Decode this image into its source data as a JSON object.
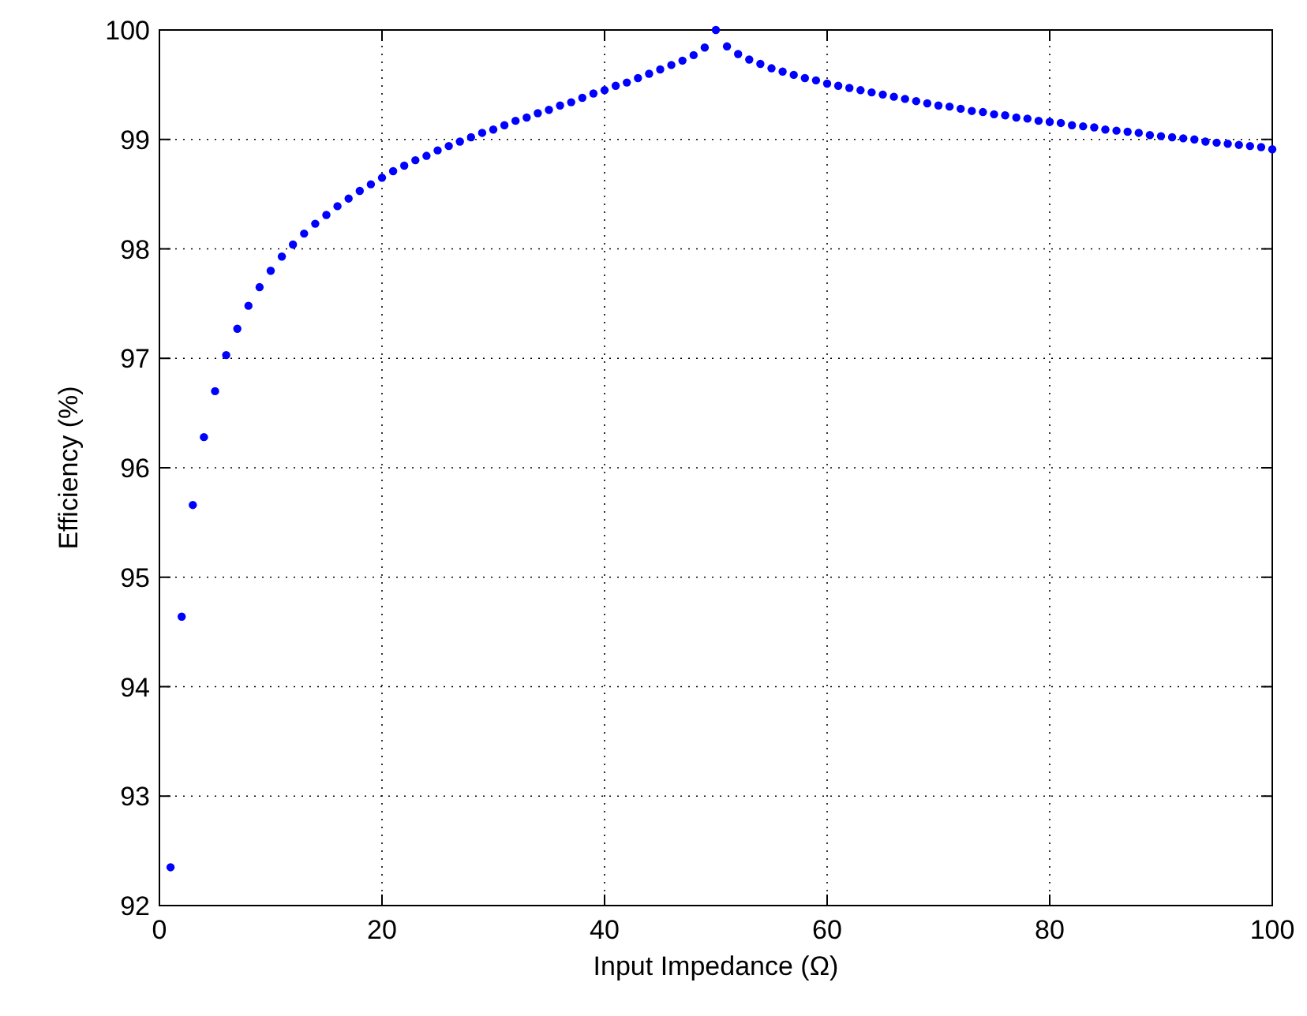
{
  "chart_data": {
    "type": "scatter",
    "xlabel": "Input Impedance (Ω)",
    "ylabel": "Efficiency (%)",
    "x": [
      1,
      2,
      3,
      4,
      5,
      6,
      7,
      8,
      9,
      10,
      11,
      12,
      13,
      14,
      15,
      16,
      17,
      18,
      19,
      20,
      21,
      22,
      23,
      24,
      25,
      26,
      27,
      28,
      29,
      30,
      31,
      32,
      33,
      34,
      35,
      36,
      37,
      38,
      39,
      40,
      41,
      42,
      43,
      44,
      45,
      46,
      47,
      48,
      49,
      50,
      51,
      52,
      53,
      54,
      55,
      56,
      57,
      58,
      59,
      60,
      61,
      62,
      63,
      64,
      65,
      66,
      67,
      68,
      69,
      70,
      71,
      72,
      73,
      74,
      75,
      76,
      77,
      78,
      79,
      80,
      81,
      82,
      83,
      84,
      85,
      86,
      87,
      88,
      89,
      90,
      91,
      92,
      93,
      94,
      95,
      96,
      97,
      98,
      99,
      100
    ],
    "series": [
      {
        "color": "#0000ff",
        "values": [
          92.35,
          94.64,
          95.66,
          96.28,
          96.7,
          97.03,
          97.27,
          97.48,
          97.65,
          97.8,
          97.93,
          98.04,
          98.14,
          98.23,
          98.31,
          98.39,
          98.46,
          98.53,
          98.59,
          98.65,
          98.71,
          98.76,
          98.81,
          98.85,
          98.9,
          98.94,
          98.98,
          99.02,
          99.06,
          99.09,
          99.13,
          99.17,
          99.2,
          99.24,
          99.27,
          99.31,
          99.34,
          99.38,
          99.42,
          99.45,
          99.49,
          99.52,
          99.56,
          99.6,
          99.64,
          99.68,
          99.72,
          99.77,
          99.84,
          100,
          99.85,
          99.78,
          99.73,
          99.69,
          99.65,
          99.62,
          99.59,
          99.56,
          99.54,
          99.51,
          99.49,
          99.47,
          99.45,
          99.43,
          99.41,
          99.39,
          99.37,
          99.35,
          99.33,
          99.31,
          99.3,
          99.28,
          99.26,
          99.25,
          99.23,
          99.22,
          99.2,
          99.19,
          99.17,
          99.16,
          99.15,
          99.13,
          99.12,
          99.11,
          99.09,
          99.08,
          99.07,
          99.06,
          99.04,
          99.03,
          99.02,
          99.01,
          99,
          98.98,
          98.97,
          98.96,
          98.95,
          98.94,
          98.93,
          98.91
        ]
      }
    ],
    "xlim": [
      0,
      100
    ],
    "ylim": [
      92,
      100
    ],
    "xticks": [
      0,
      20,
      40,
      60,
      80,
      100
    ],
    "yticks": [
      92,
      93,
      94,
      95,
      96,
      97,
      98,
      99,
      100
    ],
    "grid": true,
    "marker": "circle"
  }
}
